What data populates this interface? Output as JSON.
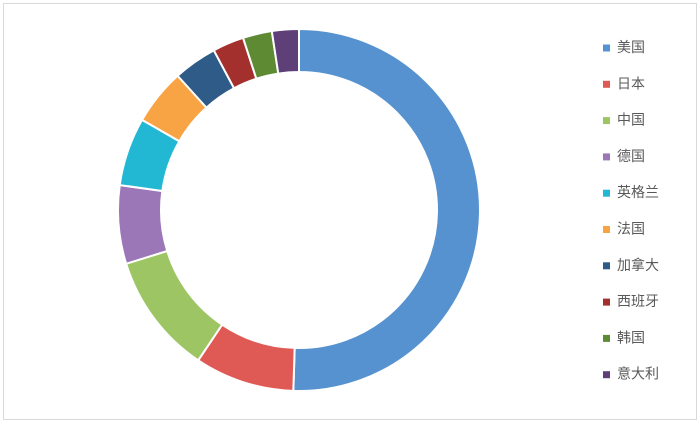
{
  "chart_data": {
    "type": "donut",
    "categories": [
      "美国",
      "日本",
      "中国",
      "德国",
      "英格兰",
      "法国",
      "加拿大",
      "西班牙",
      "韩国",
      "意大利"
    ],
    "values": [
      50.5,
      8.9,
      10.8,
      7.0,
      6.1,
      5.0,
      3.9,
      2.8,
      2.6,
      2.4
    ],
    "colors": [
      "#5592cf",
      "#e05a55",
      "#9dc563",
      "#9b77b8",
      "#22b8d4",
      "#f9a444",
      "#2e5b87",
      "#a4302e",
      "#5e8a33",
      "#5e3f77"
    ],
    "legend": "right"
  }
}
